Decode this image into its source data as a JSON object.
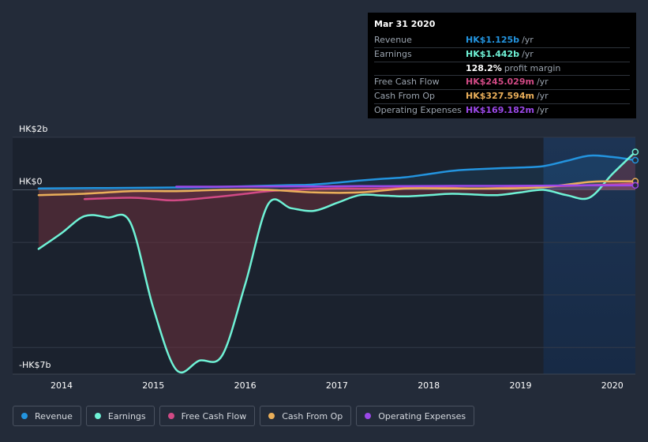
{
  "tooltip": {
    "date": "Mar 31 2020",
    "rows": [
      {
        "label": "Revenue",
        "value": "HK$1.125b",
        "unit": "/yr",
        "color": "#2394df"
      },
      {
        "label": "Earnings",
        "value": "HK$1.442b",
        "unit": "/yr",
        "color": "#6ff2d6"
      },
      {
        "label": "",
        "value": "128.2%",
        "unit": "profit margin",
        "color": "#ffffff"
      },
      {
        "label": "Free Cash Flow",
        "value": "HK$245.029m",
        "unit": "/yr",
        "color": "#d14a85"
      },
      {
        "label": "Cash From Op",
        "value": "HK$327.594m",
        "unit": "/yr",
        "color": "#eaaf5a"
      },
      {
        "label": "Operating Expenses",
        "value": "HK$169.182m",
        "unit": "/yr",
        "color": "#9b48e8"
      }
    ]
  },
  "legend": [
    {
      "label": "Revenue",
      "color": "#2394df"
    },
    {
      "label": "Earnings",
      "color": "#6ff2d6"
    },
    {
      "label": "Free Cash Flow",
      "color": "#d14a85"
    },
    {
      "label": "Cash From Op",
      "color": "#eaaf5a"
    },
    {
      "label": "Operating Expenses",
      "color": "#9b48e8"
    }
  ],
  "chart_data": {
    "type": "line",
    "y_tick_labels": [
      {
        "value": 2,
        "label": "HK$2b"
      },
      {
        "value": 0,
        "label": "HK$0"
      },
      {
        "value": -7,
        "label": "-HK$7b"
      }
    ],
    "x_tick_labels": [
      "2014",
      "2015",
      "2016",
      "2017",
      "2018",
      "2019",
      "2020"
    ],
    "xlim": [
      2013.7,
      2020.25
    ],
    "ylim": [
      -7,
      2
    ],
    "units": "HK$ billions",
    "forecast_shade_from": 2019.25,
    "series": [
      {
        "name": "Revenue",
        "color": "#2394df",
        "fill": false,
        "points": [
          [
            2013.75,
            0.05
          ],
          [
            2014.5,
            0.07
          ],
          [
            2015.5,
            0.1
          ],
          [
            2016.5,
            0.18
          ],
          [
            2016.75,
            0.2
          ],
          [
            2017.25,
            0.35
          ],
          [
            2017.5,
            0.42
          ],
          [
            2017.75,
            0.48
          ],
          [
            2018.0,
            0.6
          ],
          [
            2018.25,
            0.72
          ],
          [
            2018.5,
            0.78
          ],
          [
            2018.75,
            0.82
          ],
          [
            2019.0,
            0.85
          ],
          [
            2019.25,
            0.9
          ],
          [
            2019.5,
            1.1
          ],
          [
            2019.75,
            1.3
          ],
          [
            2020.0,
            1.25
          ],
          [
            2020.25,
            1.125
          ]
        ]
      },
      {
        "name": "Earnings",
        "color": "#6ff2d6",
        "fill": true,
        "points": [
          [
            2013.75,
            -2.25
          ],
          [
            2014.0,
            -1.65
          ],
          [
            2014.25,
            -1.0
          ],
          [
            2014.5,
            -1.05
          ],
          [
            2014.75,
            -1.25
          ],
          [
            2015.0,
            -4.5
          ],
          [
            2015.25,
            -6.85
          ],
          [
            2015.5,
            -6.5
          ],
          [
            2015.75,
            -6.3
          ],
          [
            2016.0,
            -3.6
          ],
          [
            2016.25,
            -0.55
          ],
          [
            2016.5,
            -0.7
          ],
          [
            2016.75,
            -0.8
          ],
          [
            2017.0,
            -0.5
          ],
          [
            2017.25,
            -0.2
          ],
          [
            2017.5,
            -0.22
          ],
          [
            2017.75,
            -0.25
          ],
          [
            2018.0,
            -0.2
          ],
          [
            2018.25,
            -0.15
          ],
          [
            2018.5,
            -0.18
          ],
          [
            2018.75,
            -0.2
          ],
          [
            2019.0,
            -0.1
          ],
          [
            2019.25,
            0.0
          ],
          [
            2019.5,
            -0.2
          ],
          [
            2019.75,
            -0.3
          ],
          [
            2020.0,
            0.6
          ],
          [
            2020.25,
            1.442
          ]
        ]
      },
      {
        "name": "Free Cash Flow",
        "color": "#d14a85",
        "fill": false,
        "points": [
          [
            2014.25,
            -0.35
          ],
          [
            2014.75,
            -0.3
          ],
          [
            2015.0,
            -0.35
          ],
          [
            2015.25,
            -0.4
          ],
          [
            2015.75,
            -0.25
          ],
          [
            2016.0,
            -0.15
          ],
          [
            2016.25,
            -0.05
          ],
          [
            2016.5,
            0.0
          ],
          [
            2017.0,
            0.05
          ],
          [
            2017.5,
            0.05
          ],
          [
            2018.0,
            0.1
          ],
          [
            2018.5,
            0.05
          ],
          [
            2019.0,
            0.1
          ],
          [
            2019.5,
            0.15
          ],
          [
            2020.0,
            0.2
          ],
          [
            2020.25,
            0.245
          ]
        ]
      },
      {
        "name": "Cash From Op",
        "color": "#eaaf5a",
        "fill": false,
        "points": [
          [
            2013.75,
            -0.2
          ],
          [
            2014.25,
            -0.15
          ],
          [
            2014.75,
            -0.05
          ],
          [
            2015.25,
            -0.05
          ],
          [
            2015.75,
            0.0
          ],
          [
            2016.25,
            0.0
          ],
          [
            2016.75,
            -0.1
          ],
          [
            2017.25,
            -0.1
          ],
          [
            2017.75,
            0.05
          ],
          [
            2018.25,
            0.05
          ],
          [
            2018.75,
            0.05
          ],
          [
            2019.25,
            0.1
          ],
          [
            2019.75,
            0.3
          ],
          [
            2020.0,
            0.32
          ],
          [
            2020.25,
            0.328
          ]
        ]
      },
      {
        "name": "Operating Expenses",
        "color": "#9b48e8",
        "fill": false,
        "points": [
          [
            2015.25,
            0.12
          ],
          [
            2015.75,
            0.12
          ],
          [
            2016.25,
            0.13
          ],
          [
            2016.75,
            0.13
          ],
          [
            2017.25,
            0.14
          ],
          [
            2017.75,
            0.14
          ],
          [
            2018.25,
            0.15
          ],
          [
            2018.75,
            0.15
          ],
          [
            2019.25,
            0.16
          ],
          [
            2019.75,
            0.17
          ],
          [
            2020.25,
            0.169
          ]
        ]
      }
    ]
  }
}
